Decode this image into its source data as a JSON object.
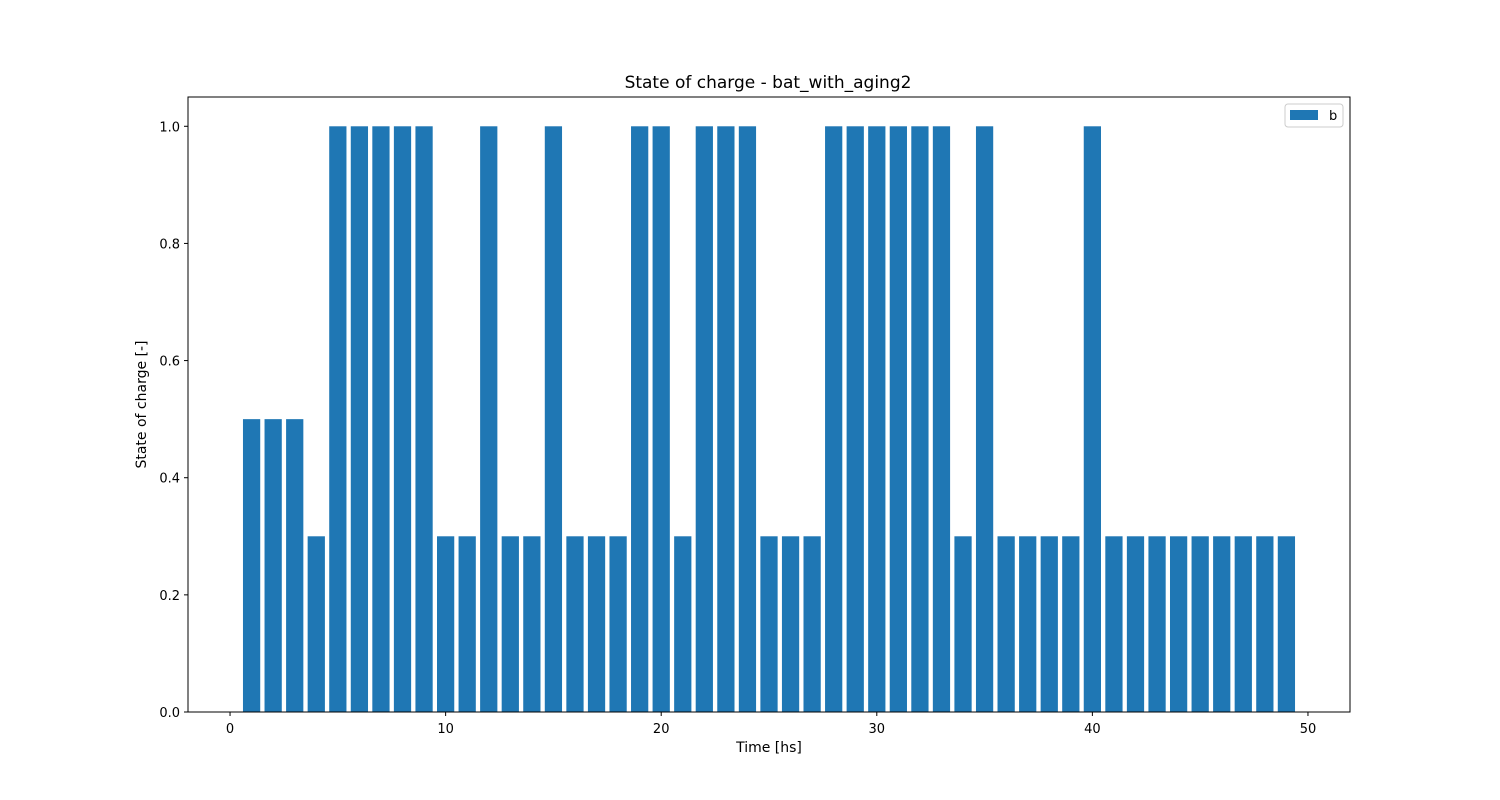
{
  "chart_data": {
    "type": "bar",
    "title": "State of charge - bat_with_aging2",
    "xlabel": "Time [hs]",
    "ylabel": "State of charge [-]",
    "x": [
      1,
      2,
      3,
      4,
      5,
      6,
      7,
      8,
      9,
      10,
      11,
      12,
      13,
      14,
      15,
      16,
      17,
      18,
      19,
      20,
      21,
      22,
      23,
      24,
      25,
      26,
      27,
      28,
      29,
      30,
      31,
      32,
      33,
      34,
      35,
      36,
      37,
      38,
      39,
      40,
      41,
      42,
      43,
      44,
      45,
      46,
      47,
      48,
      49
    ],
    "series": [
      {
        "name": "b",
        "color": "#1f77b4",
        "values": [
          0.5,
          0.5,
          0.5,
          0.3,
          1.0,
          1.0,
          1.0,
          1.0,
          1.0,
          0.3,
          0.3,
          1.0,
          0.3,
          0.3,
          1.0,
          0.3,
          0.3,
          0.3,
          1.0,
          1.0,
          0.3,
          1.0,
          1.0,
          1.0,
          0.3,
          0.3,
          0.3,
          1.0,
          1.0,
          1.0,
          1.0,
          1.0,
          1.0,
          0.3,
          1.0,
          0.3,
          0.3,
          0.3,
          0.3,
          1.0,
          0.3,
          0.3,
          0.3,
          0.3,
          0.3,
          0.3,
          0.3,
          0.3,
          0.3
        ]
      }
    ],
    "xlim": [
      -1.95,
      51.95
    ],
    "ylim": [
      0,
      1.05
    ],
    "xticks": [
      0,
      10,
      20,
      30,
      40,
      50
    ],
    "yticks": [
      0.0,
      0.2,
      0.4,
      0.6,
      0.8,
      1.0
    ],
    "xtick_labels": [
      "0",
      "10",
      "20",
      "30",
      "40",
      "50"
    ],
    "ytick_labels": [
      "0.0",
      "0.2",
      "0.4",
      "0.6",
      "0.8",
      "1.0"
    ],
    "bar_width": 0.8,
    "grid": false,
    "legend_position": "top-right"
  }
}
